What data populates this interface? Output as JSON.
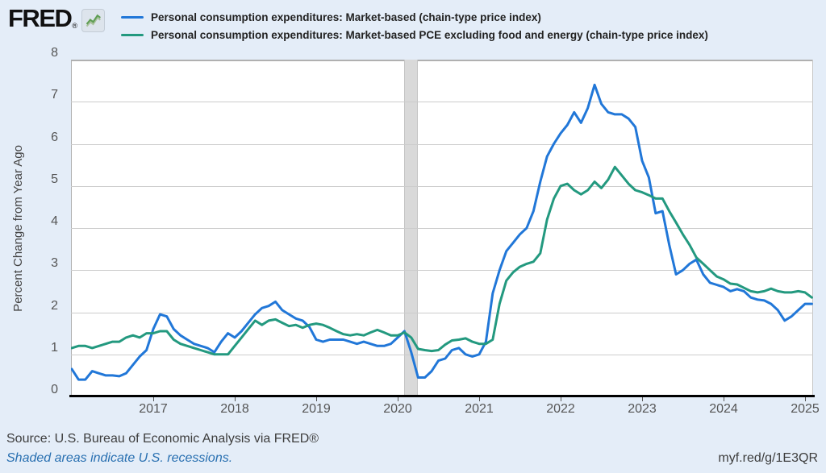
{
  "branding": {
    "logo_text": "FRED",
    "registered_mark": "®",
    "chart_icon": "sparkline-icon"
  },
  "footer": {
    "source": "Source: U.S. Bureau of Economic Analysis via FRED®",
    "recession_note": "Shaded areas indicate U.S. recessions.",
    "short_url": "myf.red/g/1E3QR"
  },
  "chart_data": {
    "type": "line",
    "title": "",
    "xlabel": "",
    "ylabel": "Percent Change from Year Ago",
    "ylim": [
      0,
      8
    ],
    "yticks": [
      0,
      1,
      2,
      3,
      4,
      5,
      6,
      7,
      8
    ],
    "xticks": [
      "2017",
      "2018",
      "2019",
      "2020",
      "2021",
      "2022",
      "2023",
      "2024",
      "2025"
    ],
    "x_range": [
      "2016-01",
      "2025-02"
    ],
    "frequency": "monthly",
    "grid": "horizontal",
    "legend_position": "top",
    "recession_bands": [
      {
        "start": "2020-02",
        "end": "2020-04"
      }
    ],
    "series": [
      {
        "id": "market-based",
        "name": "Personal consumption expenditures: Market-based (chain-type price index)",
        "color": "#2177d8",
        "values": [
          0.65,
          0.4,
          0.4,
          0.6,
          0.55,
          0.5,
          0.5,
          0.48,
          0.55,
          0.75,
          0.95,
          1.1,
          1.6,
          1.95,
          1.9,
          1.6,
          1.45,
          1.35,
          1.25,
          1.2,
          1.15,
          1.05,
          1.3,
          1.5,
          1.4,
          1.55,
          1.75,
          1.95,
          2.1,
          2.15,
          2.25,
          2.05,
          1.95,
          1.85,
          1.8,
          1.65,
          1.35,
          1.3,
          1.35,
          1.35,
          1.35,
          1.3,
          1.25,
          1.3,
          1.25,
          1.2,
          1.2,
          1.25,
          1.4,
          1.55,
          1.05,
          0.45,
          0.45,
          0.6,
          0.85,
          0.9,
          1.1,
          1.15,
          1.0,
          0.95,
          1.0,
          1.3,
          2.45,
          3.0,
          3.45,
          3.65,
          3.85,
          4.0,
          4.4,
          5.1,
          5.7,
          6.0,
          6.25,
          6.45,
          6.75,
          6.5,
          6.85,
          7.4,
          6.95,
          6.75,
          6.7,
          6.7,
          6.6,
          6.4,
          5.6,
          5.2,
          4.35,
          4.4,
          3.6,
          2.9,
          3.0,
          3.15,
          3.25,
          2.9,
          2.7,
          2.65,
          2.6,
          2.5,
          2.55,
          2.5,
          2.35,
          2.3,
          2.28,
          2.2,
          2.05,
          1.8,
          1.9,
          2.05,
          2.2,
          2.2
        ]
      },
      {
        "id": "market-based-core",
        "name": "Personal consumption expenditures: Market-based PCE excluding food and energy (chain-type price index)",
        "color": "#23997f",
        "values": [
          1.15,
          1.2,
          1.2,
          1.15,
          1.2,
          1.25,
          1.3,
          1.3,
          1.4,
          1.45,
          1.4,
          1.5,
          1.5,
          1.55,
          1.55,
          1.35,
          1.25,
          1.2,
          1.15,
          1.1,
          1.05,
          1.0,
          1.0,
          1.0,
          1.2,
          1.4,
          1.6,
          1.8,
          1.7,
          1.8,
          1.83,
          1.75,
          1.67,
          1.7,
          1.63,
          1.7,
          1.73,
          1.7,
          1.63,
          1.55,
          1.48,
          1.45,
          1.48,
          1.45,
          1.52,
          1.58,
          1.52,
          1.45,
          1.45,
          1.52,
          1.4,
          1.13,
          1.1,
          1.08,
          1.1,
          1.23,
          1.33,
          1.35,
          1.38,
          1.3,
          1.25,
          1.25,
          1.35,
          2.2,
          2.75,
          2.95,
          3.08,
          3.15,
          3.2,
          3.4,
          4.2,
          4.7,
          5.0,
          5.05,
          4.9,
          4.8,
          4.9,
          5.1,
          4.95,
          5.15,
          5.45,
          5.25,
          5.05,
          4.9,
          4.85,
          4.78,
          4.7,
          4.7,
          4.4,
          4.13,
          3.85,
          3.6,
          3.3,
          3.15,
          3.0,
          2.85,
          2.78,
          2.68,
          2.66,
          2.58,
          2.5,
          2.47,
          2.5,
          2.56,
          2.5,
          2.47,
          2.47,
          2.5,
          2.47,
          2.35
        ]
      }
    ]
  }
}
